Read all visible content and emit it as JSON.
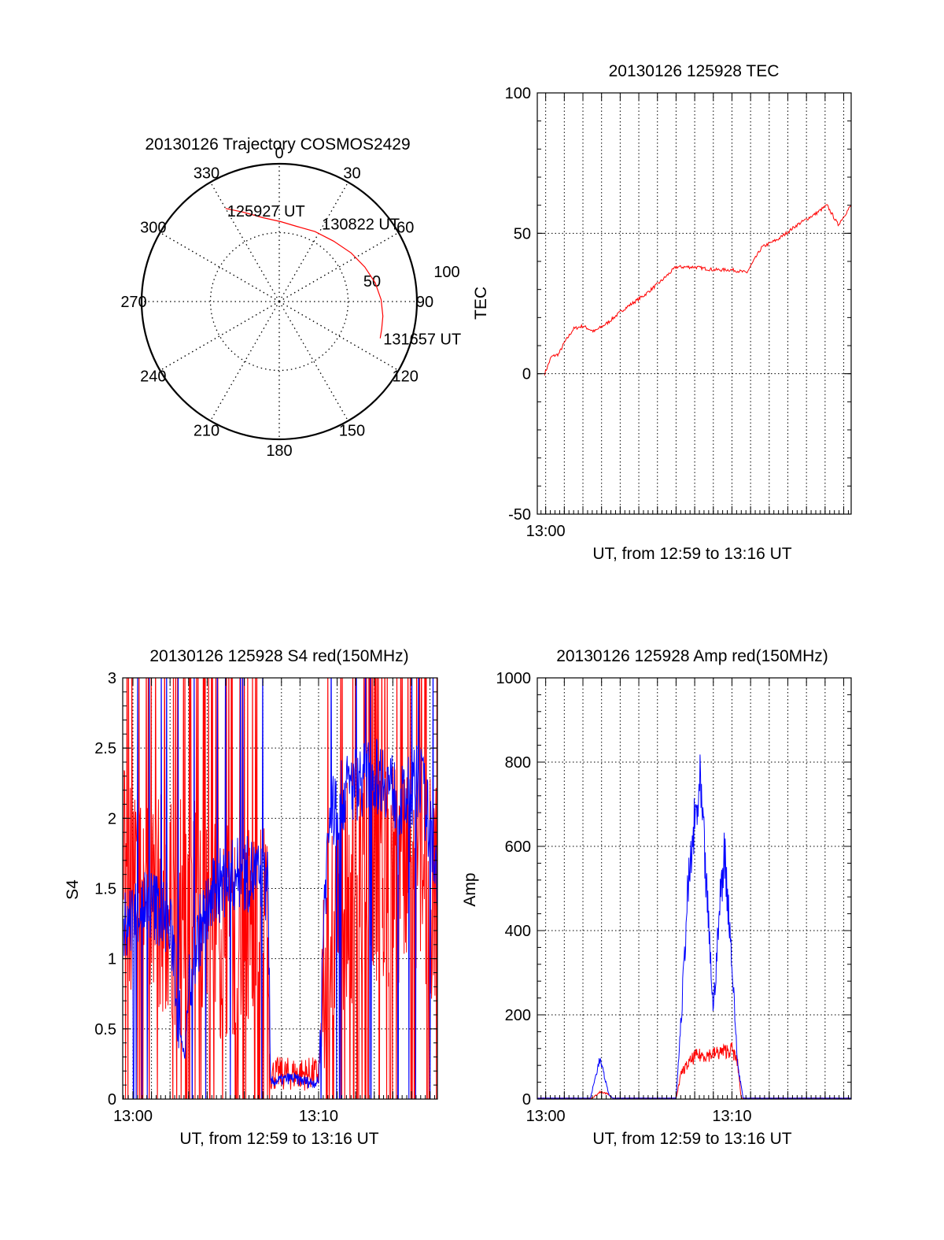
{
  "colors": {
    "red": "#ff0000",
    "blue": "#0000ff",
    "axis": "#000000",
    "grid": "#000000",
    "background": "#ffffff"
  },
  "chart_data": [
    {
      "id": "trajectory",
      "type": "polar",
      "title": "20130126 Trajectory COSMOS2429",
      "angle_labels": [
        "0",
        "30",
        "60",
        "90",
        "120",
        "150",
        "180",
        "210",
        "240",
        "270",
        "300",
        "330"
      ],
      "radial_labels": [
        "50",
        "100"
      ],
      "rlim": [
        0,
        100
      ],
      "grid": true,
      "series": [
        {
          "color": "red",
          "points": [
            {
              "az": 330,
              "r": 78
            },
            {
              "az": 338,
              "r": 70
            },
            {
              "az": 349,
              "r": 62
            },
            {
              "az": 1,
              "r": 58
            },
            {
              "az": 13,
              "r": 56
            },
            {
              "az": 27,
              "r": 57
            },
            {
              "az": 42,
              "r": 59
            },
            {
              "az": 56,
              "r": 63
            },
            {
              "az": 68,
              "r": 67
            },
            {
              "az": 79,
              "r": 71
            },
            {
              "az": 89,
              "r": 74
            },
            {
              "az": 98,
              "r": 76
            },
            {
              "az": 105,
              "r": 77
            },
            {
              "az": 110,
              "r": 78
            }
          ]
        }
      ],
      "annotations": [
        {
          "text": "125927 UT",
          "az": 330,
          "r": 78
        },
        {
          "text": "130822 UT",
          "az": 42,
          "r": 59
        },
        {
          "text": "131657 UT",
          "az": 110,
          "r": 78
        }
      ]
    },
    {
      "id": "tec",
      "type": "line",
      "title": "20130126 125928 TEC",
      "xlabel": "UT, from 12:59 to 13:16 UT",
      "ylabel": "TEC",
      "xlim": [
        -0.45,
        16.4
      ],
      "ylim": [
        -50,
        100
      ],
      "yticks": [
        -50,
        0,
        50,
        100
      ],
      "xticks": [
        {
          "value": 0,
          "label": "13:00"
        }
      ],
      "grid": true,
      "series": [
        {
          "color": "red",
          "noise": 0.6,
          "x": [
            -0.05,
            0.3,
            0.7,
            1.0,
            1.5,
            2.0,
            2.6,
            3.3,
            4.2,
            5.3,
            6.2,
            7.0,
            8.0,
            9.0,
            10.0,
            10.8,
            11.6,
            12.5,
            13.5,
            14.5,
            15.1,
            15.7,
            16.4
          ],
          "values": [
            0,
            6,
            7,
            11,
            16,
            17,
            15,
            18,
            23,
            28,
            33,
            38,
            38,
            37,
            37,
            36,
            45,
            48,
            53,
            57,
            60,
            53,
            60
          ]
        }
      ]
    },
    {
      "id": "s4",
      "type": "line",
      "title": "20130126 125928 S4 red(150MHz)",
      "xlabel": "UT, from 12:59 to 13:16 UT",
      "ylabel": "S4",
      "xlim": [
        -0.55,
        16.4
      ],
      "ylim": [
        0,
        3
      ],
      "yticks": [
        0,
        0.5,
        1,
        1.5,
        2,
        2.5,
        3
      ],
      "yticklabels": [
        "0",
        "0.5",
        "1",
        "1.5",
        "2",
        "2.5",
        "3"
      ],
      "xticks": [
        {
          "value": 0,
          "label": "13:00"
        },
        {
          "value": 10,
          "label": "13:10"
        }
      ],
      "grid": true,
      "series": [
        {
          "name": "red",
          "color": "red",
          "noise": 1.6,
          "spike_prob": 0.28,
          "x": [
            -0.5,
            1.5,
            2.3,
            3.0,
            4.0,
            5.0,
            6.0,
            7.3,
            7.4,
            10.0,
            10.2,
            10.6,
            11.0,
            12.0,
            13.0,
            14.0,
            15.0,
            16.4
          ],
          "values": [
            1.6,
            1.4,
            1.3,
            1.4,
            1.3,
            1.2,
            1.2,
            1.3,
            0.18,
            0.18,
            0.55,
            1.1,
            1.4,
            1.5,
            1.5,
            1.6,
            1.5,
            1.5
          ]
        },
        {
          "name": "blue",
          "color": "blue",
          "noise": 0.55,
          "spike_prob": 0.06,
          "x": [
            -0.5,
            0.5,
            1.5,
            2.2,
            2.4,
            2.8,
            3.0,
            3.6,
            4.5,
            5.5,
            6.5,
            7.3,
            7.4,
            8.5,
            9.5,
            10.0,
            10.3,
            10.6,
            11.5,
            12.5,
            13.5,
            14.5,
            15.5,
            16.4
          ],
          "values": [
            1.2,
            1.4,
            1.35,
            1.1,
            0.6,
            0.3,
            0.8,
            1.2,
            1.5,
            1.6,
            1.6,
            1.5,
            0.12,
            0.15,
            0.12,
            0.12,
            1.4,
            2.0,
            2.2,
            2.3,
            2.3,
            2.1,
            2.3,
            1.6
          ]
        }
      ]
    },
    {
      "id": "amp",
      "type": "line",
      "title": "20130126 125928 Amp red(150MHz)",
      "xlabel": "UT, from 12:59 to 13:16 UT",
      "ylabel": "Amp",
      "xlim": [
        -0.45,
        16.4
      ],
      "ylim": [
        0,
        1000
      ],
      "yticks": [
        0,
        200,
        400,
        600,
        800,
        1000
      ],
      "xticks": [
        {
          "value": 0,
          "label": "13:00"
        },
        {
          "value": 10,
          "label": "13:10"
        }
      ],
      "grid": true,
      "series": [
        {
          "name": "red",
          "color": "red",
          "noise": 0.35,
          "x": [
            -0.45,
            2.5,
            2.9,
            3.3,
            3.6,
            7.0,
            7.3,
            8.0,
            9.0,
            10.0,
            10.3,
            10.5,
            16.4
          ],
          "values": [
            2,
            2,
            15,
            12,
            2,
            2,
            60,
            95,
            100,
            110,
            80,
            2,
            2
          ]
        },
        {
          "name": "blue",
          "color": "blue",
          "noise": 0.25,
          "x": [
            -0.45,
            2.4,
            2.9,
            3.1,
            3.4,
            3.6,
            7.0,
            7.3,
            7.6,
            8.0,
            8.3,
            8.6,
            9.0,
            9.4,
            9.6,
            9.9,
            10.3,
            10.6,
            16.4
          ],
          "values": [
            2,
            2,
            90,
            60,
            10,
            2,
            2,
            200,
            450,
            620,
            700,
            500,
            200,
            470,
            560,
            380,
            80,
            2,
            2
          ]
        }
      ]
    }
  ]
}
